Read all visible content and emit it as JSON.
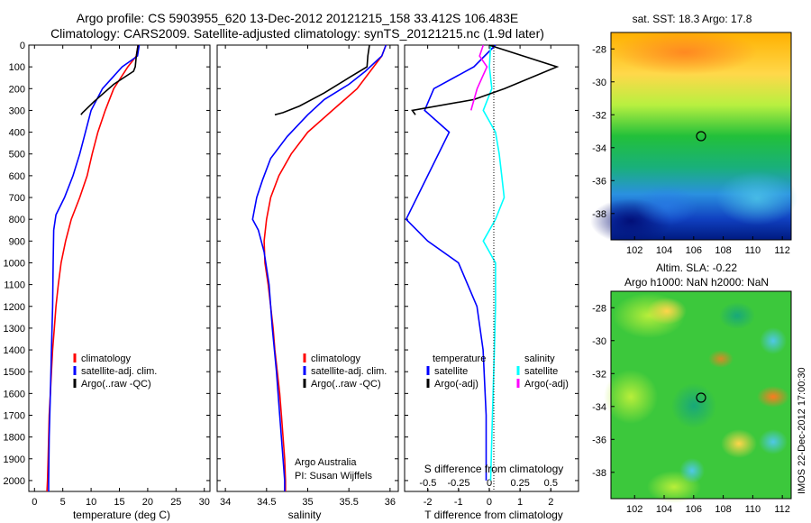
{
  "header": {
    "title_line1": "Argo profile: CS 5903955_620 13-Dec-2012 20121215_158 33.412S 106.483E",
    "title_line2": "Climatology: CARS2009. Satellite-adjusted climatology: synTS_20121215.nc (1.9d later)"
  },
  "chart_data": [
    {
      "type": "line",
      "panel": "temperature",
      "xlabel": "temperature (deg C)",
      "xlim": [
        -1,
        31
      ],
      "ylim": [
        0,
        2050
      ],
      "y_reversed": true,
      "xticks": [
        0,
        5,
        10,
        15,
        20,
        25,
        30
      ],
      "yticks": [
        0,
        100,
        200,
        300,
        400,
        500,
        600,
        700,
        800,
        900,
        1000,
        1100,
        1200,
        1300,
        1400,
        1500,
        1600,
        1700,
        1800,
        1900,
        2000
      ],
      "legend": [
        "climatology",
        "satellite-adj. clim.",
        "Argo(..raw -QC)"
      ],
      "legend_position": "lower-right",
      "series": [
        {
          "name": "climatology",
          "color": "#ff0000",
          "points": [
            [
              18.3,
              0
            ],
            [
              18.0,
              50
            ],
            [
              16.5,
              100
            ],
            [
              14.0,
              200
            ],
            [
              12.5,
              300
            ],
            [
              11.2,
              400
            ],
            [
              10.2,
              500
            ],
            [
              9.3,
              600
            ],
            [
              8.0,
              700
            ],
            [
              6.5,
              800
            ],
            [
              5.5,
              900
            ],
            [
              4.7,
              1000
            ],
            [
              4.2,
              1100
            ],
            [
              3.8,
              1200
            ],
            [
              3.5,
              1300
            ],
            [
              3.2,
              1400
            ],
            [
              3.0,
              1500
            ],
            [
              2.8,
              1600
            ],
            [
              2.6,
              1700
            ],
            [
              2.5,
              1800
            ],
            [
              2.4,
              1900
            ],
            [
              2.3,
              2000
            ],
            [
              2.2,
              2050
            ]
          ]
        },
        {
          "name": "satellite-adj. clim.",
          "color": "#0000ff",
          "points": [
            [
              18.5,
              0
            ],
            [
              18.2,
              50
            ],
            [
              15.5,
              100
            ],
            [
              12.0,
              200
            ],
            [
              10.0,
              300
            ],
            [
              9.0,
              400
            ],
            [
              8.0,
              500
            ],
            [
              6.8,
              600
            ],
            [
              5.3,
              700
            ],
            [
              3.8,
              780
            ],
            [
              3.4,
              850
            ],
            [
              3.3,
              1000
            ],
            [
              3.2,
              1200
            ],
            [
              3.0,
              1400
            ],
            [
              2.8,
              1600
            ],
            [
              2.6,
              1800
            ],
            [
              2.5,
              2000
            ],
            [
              2.5,
              2050
            ]
          ]
        },
        {
          "name": "Argo(..raw -QC)",
          "color": "#000000",
          "points": [
            [
              18.3,
              0
            ],
            [
              18.0,
              50
            ],
            [
              17.8,
              100
            ],
            [
              17.5,
              120
            ],
            [
              14.0,
              180
            ],
            [
              10.5,
              260
            ],
            [
              8.5,
              310
            ],
            [
              8.2,
              320
            ]
          ]
        }
      ]
    },
    {
      "type": "line",
      "panel": "salinity",
      "xlabel": "salinity",
      "xlim": [
        33.9,
        36.1
      ],
      "ylim": [
        0,
        2050
      ],
      "y_reversed": true,
      "xticks": [
        34,
        34.5,
        35,
        35.5,
        36
      ],
      "legend": [
        "climatology",
        "satellite-adj. clim.",
        "Argo(..raw -QC)"
      ],
      "legend_position": "lower-right",
      "annotation": [
        "Argo Australia",
        "PI: Susan Wijffels"
      ],
      "series": [
        {
          "name": "climatology",
          "color": "#ff0000",
          "points": [
            [
              35.95,
              0
            ],
            [
              35.9,
              50
            ],
            [
              35.8,
              100
            ],
            [
              35.6,
              200
            ],
            [
              35.3,
              300
            ],
            [
              35.0,
              400
            ],
            [
              34.8,
              500
            ],
            [
              34.65,
              600
            ],
            [
              34.55,
              700
            ],
            [
              34.5,
              800
            ],
            [
              34.47,
              900
            ],
            [
              34.48,
              1000
            ],
            [
              34.52,
              1100
            ],
            [
              34.55,
              1200
            ],
            [
              34.58,
              1300
            ],
            [
              34.6,
              1400
            ],
            [
              34.63,
              1500
            ],
            [
              34.66,
              1600
            ],
            [
              34.68,
              1700
            ],
            [
              34.7,
              1800
            ],
            [
              34.72,
              1900
            ],
            [
              34.73,
              2000
            ],
            [
              34.73,
              2050
            ]
          ]
        },
        {
          "name": "satellite-adj. clim.",
          "color": "#0000ff",
          "points": [
            [
              35.95,
              0
            ],
            [
              35.9,
              50
            ],
            [
              35.7,
              120
            ],
            [
              35.5,
              180
            ],
            [
              35.2,
              250
            ],
            [
              35.0,
              320
            ],
            [
              34.75,
              420
            ],
            [
              34.55,
              520
            ],
            [
              34.45,
              620
            ],
            [
              34.38,
              700
            ],
            [
              34.33,
              800
            ],
            [
              34.4,
              850
            ],
            [
              34.47,
              950
            ],
            [
              34.53,
              1100
            ],
            [
              34.57,
              1300
            ],
            [
              34.62,
              1500
            ],
            [
              34.66,
              1700
            ],
            [
              34.7,
              1900
            ],
            [
              34.72,
              2000
            ],
            [
              34.72,
              2050
            ]
          ]
        },
        {
          "name": "Argo(..raw -QC)",
          "color": "#000000",
          "points": [
            [
              35.75,
              0
            ],
            [
              35.73,
              50
            ],
            [
              35.72,
              100
            ],
            [
              35.5,
              150
            ],
            [
              35.2,
              220
            ],
            [
              34.9,
              280
            ],
            [
              34.7,
              310
            ],
            [
              34.6,
              320
            ]
          ]
        }
      ]
    },
    {
      "type": "line",
      "panel": "difference",
      "xlabel": "T difference from climatology",
      "x2label": "S difference from climatology",
      "xlim": [
        -2.75,
        2.9
      ],
      "x2lim": [
        -0.69,
        0.725
      ],
      "ylim": [
        0,
        2050
      ],
      "y_reversed": true,
      "xticks": [
        -2,
        -1,
        0,
        1,
        2
      ],
      "x2ticks": [
        -0.5,
        -0.25,
        0,
        0.25,
        0.5
      ],
      "x2ticklabels": [
        "-0.5",
        "-0.25",
        "0",
        "0.25",
        "0.5"
      ],
      "legend": [
        "temperature",
        "satellite",
        "Argo(-adj)",
        "salinity",
        "satellite",
        "Argo(-adj)"
      ],
      "legend_position": "lower",
      "series": [
        {
          "name": "satellite",
          "group": "temperature",
          "axis": "T",
          "color": "#0000ff",
          "points": [
            [
              0.2,
              0
            ],
            [
              -0.5,
              100
            ],
            [
              -1.8,
              200
            ],
            [
              -2.1,
              300
            ],
            [
              -1.3,
              400
            ],
            [
              -2.0,
              600
            ],
            [
              -2.7,
              800
            ],
            [
              -2.0,
              900
            ],
            [
              -1.0,
              1000
            ],
            [
              -0.4,
              1200
            ],
            [
              -0.2,
              1400
            ],
            [
              -0.1,
              1700
            ],
            [
              -0.1,
              2000
            ]
          ]
        },
        {
          "name": "satellite",
          "group": "salinity",
          "axis": "S",
          "color": "#00ffff",
          "points": [
            [
              0.01,
              0
            ],
            [
              0.0,
              100
            ],
            [
              0.02,
              200
            ],
            [
              -0.05,
              300
            ],
            [
              0.05,
              400
            ],
            [
              0.08,
              500
            ],
            [
              0.1,
              600
            ],
            [
              0.12,
              700
            ],
            [
              0.05,
              800
            ],
            [
              -0.05,
              900
            ],
            [
              0.05,
              1000
            ],
            [
              0.05,
              1200
            ],
            [
              0.04,
              1400
            ],
            [
              0.03,
              1600
            ],
            [
              0.02,
              1800
            ],
            [
              0.01,
              2000
            ]
          ]
        },
        {
          "name": "Argo(-adj)",
          "group": "temperature",
          "axis": "T",
          "color": "#000000",
          "points": [
            [
              0.0,
              0
            ],
            [
              2.2,
              100
            ],
            [
              0.5,
              200
            ],
            [
              -0.5,
              250
            ],
            [
              -2.5,
              300
            ],
            [
              -2.4,
              320
            ]
          ]
        },
        {
          "name": "Argo(-adj)",
          "group": "salinity",
          "axis": "S",
          "color": "#ff00ff",
          "points": [
            [
              -0.05,
              0
            ],
            [
              -0.08,
              50
            ],
            [
              -0.02,
              100
            ],
            [
              -0.1,
              200
            ],
            [
              -0.15,
              300
            ]
          ]
        }
      ]
    }
  ],
  "maps": {
    "sst": {
      "title": "sat. SST: 18.3 Argo: 17.8",
      "lon_ticks": [
        "102",
        "104",
        "106",
        "108",
        "110",
        "112"
      ],
      "lat_ticks": [
        "-28",
        "-30",
        "-32",
        "-34",
        "-36",
        "-38"
      ],
      "marker": {
        "lon": 106.483,
        "lat": -33.412
      }
    },
    "sla": {
      "title_line1": "Altim. SLA: -0.22",
      "title_line2": "Argo h1000: NaN h2000: NaN",
      "lon_ticks": [
        "102",
        "104",
        "106",
        "108",
        "110",
        "112"
      ],
      "lat_ticks": [
        "-28",
        "-30",
        "-32",
        "-34",
        "-36",
        "-38"
      ],
      "marker": {
        "lon": 106.483,
        "lat": -33.412
      }
    },
    "stamp": "IMOS 22-Dec-2012 17:00:30"
  }
}
